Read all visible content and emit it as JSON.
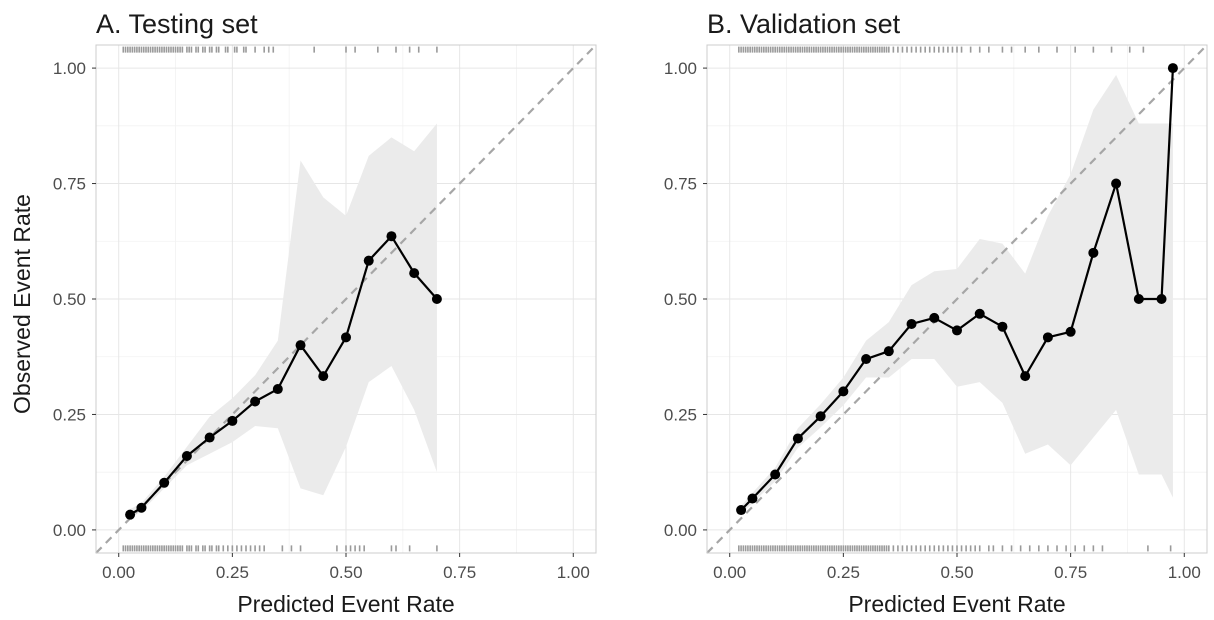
{
  "chart_data": {
    "type": "line",
    "x_axis_label": "Predicted Event Rate",
    "y_axis_label": "Observed Event Rate",
    "xlim": [
      -0.05,
      1.05
    ],
    "ylim": [
      -0.05,
      1.05
    ],
    "x_ticks": [
      0,
      0.25,
      0.5,
      0.75,
      1
    ],
    "x_tick_labels": [
      "0.00",
      "0.25",
      "0.50",
      "0.75",
      "1.00"
    ],
    "y_ticks": [
      0,
      0.25,
      0.5,
      0.75,
      1
    ],
    "y_tick_labels": [
      "0.00",
      "0.25",
      "0.50",
      "0.75",
      "1.00"
    ],
    "grid": true,
    "reference_line": "y = x (dashed)",
    "colors": {
      "line": "#000000",
      "ribbon": "#ebebeb",
      "rug": "#9a9a9a",
      "reference": "#a6a6a6",
      "grid": "#e6e6e6",
      "panel_border": "#cccccc"
    },
    "panels": [
      {
        "title": "A. Testing set",
        "points": [
          {
            "x": 0.025,
            "y": 0.033
          },
          {
            "x": 0.05,
            "y": 0.048
          },
          {
            "x": 0.1,
            "y": 0.102
          },
          {
            "x": 0.15,
            "y": 0.16
          },
          {
            "x": 0.2,
            "y": 0.2
          },
          {
            "x": 0.25,
            "y": 0.236
          },
          {
            "x": 0.3,
            "y": 0.278
          },
          {
            "x": 0.35,
            "y": 0.305
          },
          {
            "x": 0.4,
            "y": 0.4
          },
          {
            "x": 0.45,
            "y": 0.333
          },
          {
            "x": 0.5,
            "y": 0.417
          },
          {
            "x": 0.55,
            "y": 0.583
          },
          {
            "x": 0.6,
            "y": 0.636
          },
          {
            "x": 0.65,
            "y": 0.556
          },
          {
            "x": 0.7,
            "y": 0.5
          }
        ],
        "ribbon": [
          {
            "x": 0.025,
            "lo": 0.025,
            "hi": 0.045
          },
          {
            "x": 0.05,
            "lo": 0.04,
            "hi": 0.058
          },
          {
            "x": 0.1,
            "lo": 0.09,
            "hi": 0.115
          },
          {
            "x": 0.15,
            "lo": 0.14,
            "hi": 0.18
          },
          {
            "x": 0.2,
            "lo": 0.165,
            "hi": 0.245
          },
          {
            "x": 0.25,
            "lo": 0.19,
            "hi": 0.285
          },
          {
            "x": 0.3,
            "lo": 0.225,
            "hi": 0.335
          },
          {
            "x": 0.35,
            "lo": 0.22,
            "hi": 0.41
          },
          {
            "x": 0.4,
            "lo": 0.09,
            "hi": 0.8
          },
          {
            "x": 0.45,
            "lo": 0.075,
            "hi": 0.72
          },
          {
            "x": 0.5,
            "lo": 0.18,
            "hi": 0.68
          },
          {
            "x": 0.55,
            "lo": 0.32,
            "hi": 0.81
          },
          {
            "x": 0.6,
            "lo": 0.355,
            "hi": 0.85
          },
          {
            "x": 0.65,
            "lo": 0.26,
            "hi": 0.82
          },
          {
            "x": 0.7,
            "lo": 0.125,
            "hi": 0.88
          }
        ],
        "rug_top": [
          0.01,
          0.015,
          0.02,
          0.025,
          0.03,
          0.035,
          0.04,
          0.045,
          0.05,
          0.055,
          0.06,
          0.065,
          0.07,
          0.075,
          0.08,
          0.085,
          0.09,
          0.095,
          0.1,
          0.105,
          0.11,
          0.115,
          0.12,
          0.125,
          0.13,
          0.135,
          0.14,
          0.15,
          0.155,
          0.16,
          0.17,
          0.175,
          0.185,
          0.19,
          0.2,
          0.205,
          0.215,
          0.22,
          0.235,
          0.24,
          0.255,
          0.26,
          0.275,
          0.28,
          0.3,
          0.32,
          0.33,
          0.34,
          0.43,
          0.5,
          0.52,
          0.57,
          0.61,
          0.64,
          0.66,
          0.7
        ],
        "rug_bottom": [
          0.01,
          0.015,
          0.02,
          0.025,
          0.03,
          0.035,
          0.04,
          0.045,
          0.05,
          0.055,
          0.06,
          0.065,
          0.07,
          0.075,
          0.08,
          0.085,
          0.09,
          0.095,
          0.1,
          0.105,
          0.11,
          0.115,
          0.12,
          0.125,
          0.13,
          0.135,
          0.14,
          0.15,
          0.155,
          0.16,
          0.17,
          0.175,
          0.185,
          0.19,
          0.2,
          0.205,
          0.215,
          0.22,
          0.23,
          0.24,
          0.25,
          0.26,
          0.27,
          0.28,
          0.29,
          0.3,
          0.31,
          0.32,
          0.36,
          0.38,
          0.4,
          0.48,
          0.5,
          0.51,
          0.52,
          0.53,
          0.54,
          0.6,
          0.61,
          0.64,
          0.7
        ]
      },
      {
        "title": "B. Validation set",
        "points": [
          {
            "x": 0.025,
            "y": 0.043
          },
          {
            "x": 0.05,
            "y": 0.068
          },
          {
            "x": 0.1,
            "y": 0.12
          },
          {
            "x": 0.15,
            "y": 0.198
          },
          {
            "x": 0.2,
            "y": 0.246
          },
          {
            "x": 0.25,
            "y": 0.3
          },
          {
            "x": 0.3,
            "y": 0.37
          },
          {
            "x": 0.35,
            "y": 0.387
          },
          {
            "x": 0.4,
            "y": 0.446
          },
          {
            "x": 0.45,
            "y": 0.459
          },
          {
            "x": 0.5,
            "y": 0.432
          },
          {
            "x": 0.55,
            "y": 0.468
          },
          {
            "x": 0.6,
            "y": 0.44
          },
          {
            "x": 0.65,
            "y": 0.333
          },
          {
            "x": 0.7,
            "y": 0.417
          },
          {
            "x": 0.75,
            "y": 0.429
          },
          {
            "x": 0.8,
            "y": 0.6
          },
          {
            "x": 0.85,
            "y": 0.75
          },
          {
            "x": 0.9,
            "y": 0.5
          },
          {
            "x": 0.95,
            "y": 0.5
          },
          {
            "x": 0.975,
            "y": 1
          }
        ],
        "ribbon": [
          {
            "x": 0.025,
            "lo": 0.035,
            "hi": 0.052
          },
          {
            "x": 0.05,
            "lo": 0.058,
            "hi": 0.08
          },
          {
            "x": 0.1,
            "lo": 0.105,
            "hi": 0.135
          },
          {
            "x": 0.15,
            "lo": 0.178,
            "hi": 0.22
          },
          {
            "x": 0.2,
            "lo": 0.222,
            "hi": 0.272
          },
          {
            "x": 0.25,
            "lo": 0.27,
            "hi": 0.33
          },
          {
            "x": 0.3,
            "lo": 0.33,
            "hi": 0.41
          },
          {
            "x": 0.35,
            "lo": 0.33,
            "hi": 0.45
          },
          {
            "x": 0.4,
            "lo": 0.37,
            "hi": 0.53
          },
          {
            "x": 0.45,
            "lo": 0.37,
            "hi": 0.56
          },
          {
            "x": 0.5,
            "lo": 0.31,
            "hi": 0.565
          },
          {
            "x": 0.55,
            "lo": 0.32,
            "hi": 0.63
          },
          {
            "x": 0.6,
            "lo": 0.275,
            "hi": 0.62
          },
          {
            "x": 0.65,
            "lo": 0.165,
            "hi": 0.555
          },
          {
            "x": 0.7,
            "lo": 0.185,
            "hi": 0.68
          },
          {
            "x": 0.75,
            "lo": 0.14,
            "hi": 0.77
          },
          {
            "x": 0.8,
            "lo": 0.2,
            "hi": 0.91
          },
          {
            "x": 0.85,
            "lo": 0.26,
            "hi": 0.985
          },
          {
            "x": 0.9,
            "lo": 0.12,
            "hi": 0.88
          },
          {
            "x": 0.95,
            "lo": 0.12,
            "hi": 0.88
          },
          {
            "x": 0.975,
            "lo": 0.07,
            "hi": 0.88
          }
        ],
        "rug_top": [
          0.02,
          0.025,
          0.03,
          0.035,
          0.04,
          0.045,
          0.05,
          0.055,
          0.06,
          0.065,
          0.07,
          0.075,
          0.08,
          0.085,
          0.09,
          0.095,
          0.1,
          0.105,
          0.11,
          0.115,
          0.12,
          0.125,
          0.13,
          0.135,
          0.14,
          0.145,
          0.15,
          0.155,
          0.16,
          0.165,
          0.17,
          0.175,
          0.18,
          0.185,
          0.19,
          0.195,
          0.2,
          0.205,
          0.21,
          0.215,
          0.22,
          0.225,
          0.23,
          0.235,
          0.24,
          0.245,
          0.25,
          0.255,
          0.26,
          0.265,
          0.27,
          0.275,
          0.28,
          0.285,
          0.29,
          0.295,
          0.3,
          0.305,
          0.31,
          0.315,
          0.32,
          0.325,
          0.33,
          0.335,
          0.34,
          0.345,
          0.35,
          0.36,
          0.37,
          0.38,
          0.39,
          0.4,
          0.41,
          0.42,
          0.43,
          0.44,
          0.45,
          0.46,
          0.47,
          0.48,
          0.49,
          0.5,
          0.51,
          0.53,
          0.55,
          0.57,
          0.6,
          0.62,
          0.65,
          0.68,
          0.72,
          0.76,
          0.8,
          0.84,
          0.88,
          0.91
        ],
        "rug_bottom": [
          0.02,
          0.025,
          0.03,
          0.035,
          0.04,
          0.045,
          0.05,
          0.055,
          0.06,
          0.065,
          0.07,
          0.075,
          0.08,
          0.085,
          0.09,
          0.095,
          0.1,
          0.105,
          0.11,
          0.115,
          0.12,
          0.125,
          0.13,
          0.135,
          0.14,
          0.145,
          0.15,
          0.155,
          0.16,
          0.165,
          0.17,
          0.175,
          0.18,
          0.185,
          0.19,
          0.195,
          0.2,
          0.205,
          0.21,
          0.215,
          0.22,
          0.225,
          0.23,
          0.235,
          0.24,
          0.245,
          0.25,
          0.255,
          0.26,
          0.265,
          0.27,
          0.275,
          0.28,
          0.285,
          0.29,
          0.295,
          0.3,
          0.305,
          0.31,
          0.315,
          0.32,
          0.325,
          0.33,
          0.335,
          0.34,
          0.345,
          0.35,
          0.36,
          0.37,
          0.38,
          0.39,
          0.4,
          0.41,
          0.42,
          0.43,
          0.44,
          0.45,
          0.46,
          0.47,
          0.48,
          0.49,
          0.5,
          0.51,
          0.52,
          0.53,
          0.54,
          0.55,
          0.57,
          0.58,
          0.6,
          0.62,
          0.64,
          0.66,
          0.68,
          0.7,
          0.72,
          0.74,
          0.76,
          0.78,
          0.8,
          0.82,
          0.92,
          0.97
        ]
      }
    ]
  }
}
